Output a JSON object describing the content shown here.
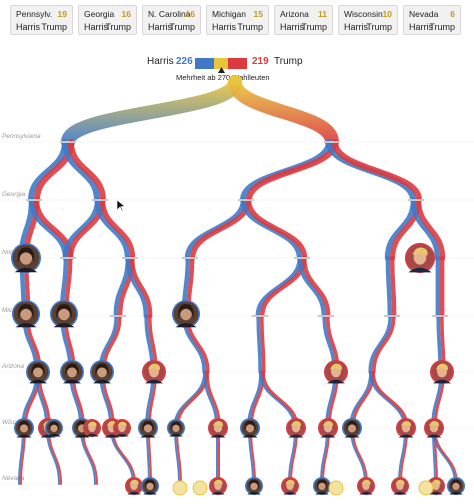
{
  "states": [
    {
      "name": "Pennsylv.",
      "ev": "19",
      "harris": "Harris",
      "trump": "Trump"
    },
    {
      "name": "Georgia",
      "ev": "16",
      "harris": "Harris",
      "trump": "Trump"
    },
    {
      "name": "N. Carolina",
      "ev": "16",
      "harris": "Harris",
      "trump": "Trump"
    },
    {
      "name": "Michigan",
      "ev": "15",
      "harris": "Harris",
      "trump": "Trump"
    },
    {
      "name": "Arizona",
      "ev": "11",
      "harris": "Harris",
      "trump": "Trump"
    },
    {
      "name": "Wisconsin",
      "ev": "10",
      "harris": "Harris",
      "trump": "Trump"
    },
    {
      "name": "Nevada",
      "ev": "6",
      "harris": "Harris",
      "trump": "Trump"
    }
  ],
  "header": {
    "harris_label": "Harris",
    "harris_votes": "226",
    "trump_votes": "219",
    "trump_label": "Trump",
    "majority": "Mehrheit ab 270 Wahlleuten"
  },
  "row_labels": [
    "Pennsylvania",
    "Georgia",
    "Nor",
    "Mich",
    "Arizona",
    "Wisconsin",
    "Nevada"
  ],
  "colors": {
    "harris": "#3f79c8",
    "trump": "#db3b3f",
    "toss_up": "#e8c53a",
    "card_bg": "#f1f1f1"
  }
}
